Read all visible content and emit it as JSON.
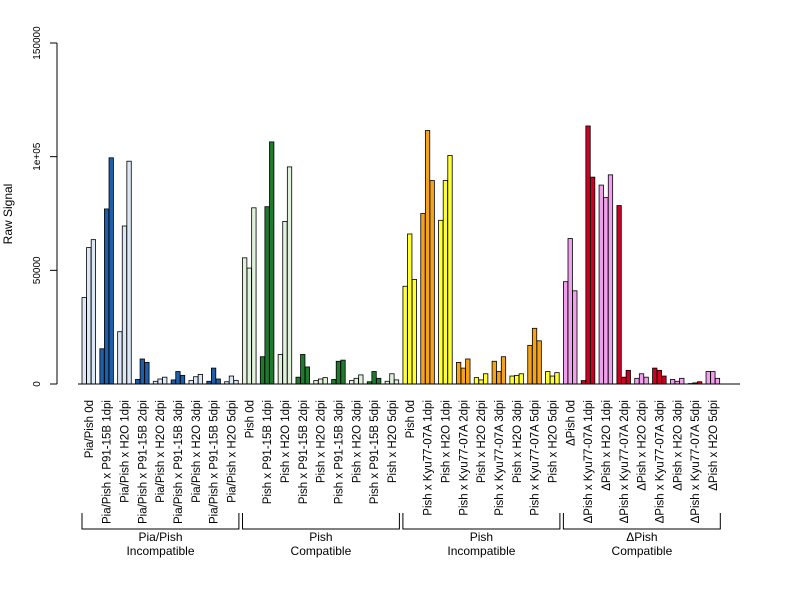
{
  "colors": {
    "pia_pish_light": "#dce8f5",
    "pia_pish_dark": "#1f5ea8",
    "pish_compat_light": "#e1f2dc",
    "pish_compat_dark": "#1f7a2e",
    "pish_incompat_light": "#ffff33",
    "pish_incompat_dark": "#f5a31a",
    "dpish_light": "#f0a0ec",
    "dpish_dark": "#cc0022"
  },
  "chart_data": {
    "type": "bar",
    "ylabel": "Raw Signal",
    "ylim": [
      0,
      150000
    ],
    "yticks": [
      0,
      50000,
      100000,
      150000
    ],
    "ytick_labels": [
      "0",
      "50000",
      "1e+05",
      "150000"
    ],
    "grid": false,
    "categories": [
      {
        "label": "Pia/Pish 0d",
        "values": [
          38000,
          60000,
          63500
        ],
        "color": "light"
      },
      {
        "label": "Pia/Pish x P91-15B 1dpi",
        "values": [
          15500,
          77000,
          99500
        ],
        "color": "dark"
      },
      {
        "label": "Pia/Pish x H2O 1dpi",
        "values": [
          23000,
          69500,
          98000
        ],
        "color": "light"
      },
      {
        "label": "Pia/Pish x P91-15B 2dpi",
        "values": [
          2000,
          11000,
          9500
        ],
        "color": "dark"
      },
      {
        "label": "Pia/Pish x H2O 2dpi",
        "values": [
          1200,
          2200,
          3000
        ],
        "color": "light"
      },
      {
        "label": "Pia/Pish x P91-15B 3dpi",
        "values": [
          1800,
          5500,
          3800
        ],
        "color": "dark"
      },
      {
        "label": "Pia/Pish x H2O 3dpi",
        "values": [
          1500,
          3200,
          4200
        ],
        "color": "light"
      },
      {
        "label": "Pia/Pish x P91-15B 5dpi",
        "values": [
          1200,
          7000,
          2200
        ],
        "color": "dark"
      },
      {
        "label": "Pia/Pish x H2O 5dpi",
        "values": [
          1000,
          3500,
          1600
        ],
        "color": "light"
      },
      {
        "label": "Pish 0d",
        "values": [
          55500,
          51000,
          77500
        ],
        "color": "light"
      },
      {
        "label": "Pish x P91-15B 1dpi",
        "values": [
          12000,
          78000,
          106500
        ],
        "color": "dark"
      },
      {
        "label": "Pish x H2O 1dpi",
        "values": [
          13000,
          71500,
          95500
        ],
        "color": "light"
      },
      {
        "label": "Pish x P91-15B 2dpi",
        "values": [
          3000,
          13000,
          7500
        ],
        "color": "dark"
      },
      {
        "label": "Pish x H2O 2dpi",
        "values": [
          1500,
          2200,
          2800
        ],
        "color": "light"
      },
      {
        "label": "Pish x P91-15B 3dpi",
        "values": [
          2000,
          10000,
          10500
        ],
        "color": "dark"
      },
      {
        "label": "Pish x H2O 3dpi",
        "values": [
          1500,
          2500,
          4000
        ],
        "color": "light"
      },
      {
        "label": "Pish x P91-15B 5dpi",
        "values": [
          1000,
          5500,
          2500
        ],
        "color": "dark"
      },
      {
        "label": "Pish x H2O 5dpi",
        "values": [
          1200,
          4500,
          1800
        ],
        "color": "light"
      },
      {
        "label": "Pish 0d",
        "values": [
          43000,
          66000,
          46000
        ],
        "color": "light"
      },
      {
        "label": "Pish x Kyu77-07A 1dpi",
        "values": [
          75000,
          111500,
          89500
        ],
        "color": "dark"
      },
      {
        "label": "Pish x H2O 1dpi",
        "values": [
          72000,
          89500,
          100500
        ],
        "color": "light"
      },
      {
        "label": "Pish x Kyu77-07A 2dpi",
        "values": [
          9500,
          7000,
          11000
        ],
        "color": "dark"
      },
      {
        "label": "Pish x H2O 2dpi",
        "values": [
          2800,
          1800,
          4500
        ],
        "color": "light"
      },
      {
        "label": "Pish x Kyu77-07A 3dpi",
        "values": [
          10000,
          5500,
          12000
        ],
        "color": "dark"
      },
      {
        "label": "Pish x H2O 3dpi",
        "values": [
          3500,
          3800,
          4500
        ],
        "color": "light"
      },
      {
        "label": "Pish x Kyu77-07A 5dpi",
        "values": [
          17000,
          24500,
          19000
        ],
        "color": "dark"
      },
      {
        "label": "Pish x H2O 5dpi",
        "values": [
          5500,
          3500,
          5000
        ],
        "color": "light"
      },
      {
        "label": "ΔPish 0d",
        "values": [
          45000,
          64000,
          41000
        ],
        "color": "light"
      },
      {
        "label": "ΔPish x Kyu77-07A 1dpi",
        "values": [
          1500,
          113500,
          91000
        ],
        "color": "dark"
      },
      {
        "label": "ΔPish x H2O 1dpi",
        "values": [
          87500,
          82000,
          92000
        ],
        "color": "light"
      },
      {
        "label": "ΔPish x Kyu77-07A 2dpi",
        "values": [
          78500,
          3000,
          6000
        ],
        "color": "dark"
      },
      {
        "label": "ΔPish x H2O 2dpi",
        "values": [
          2500,
          4500,
          3000
        ],
        "color": "light"
      },
      {
        "label": "ΔPish x Kyu77-07A 3dpi",
        "values": [
          7000,
          6000,
          3500
        ],
        "color": "dark"
      },
      {
        "label": "ΔPish x H2O 3dpi",
        "values": [
          2000,
          1200,
          2500
        ],
        "color": "light"
      },
      {
        "label": "ΔPish x Kyu77-07A 5dpi",
        "values": [
          200,
          500,
          1000
        ],
        "color": "dark"
      },
      {
        "label": "ΔPish x H2O 5dpi",
        "values": [
          5500,
          5500,
          2500
        ],
        "color": "light"
      }
    ],
    "groups": [
      {
        "line1": "Pia/Pish",
        "line2": "Incompatible",
        "palette": [
          "pia_pish_light",
          "pia_pish_dark"
        ],
        "start": 0,
        "end": 8
      },
      {
        "line1": "Pish",
        "line2": "Compatible",
        "palette": [
          "pish_compat_light",
          "pish_compat_dark"
        ],
        "start": 9,
        "end": 17
      },
      {
        "line1": "Pish",
        "line2": "Incompatible",
        "palette": [
          "pish_incompat_light",
          "pish_incompat_dark"
        ],
        "start": 18,
        "end": 26
      },
      {
        "line1": "ΔPish",
        "line2": "Compatible",
        "palette": [
          "dpish_light",
          "dpish_dark"
        ],
        "start": 27,
        "end": 35
      }
    ]
  }
}
